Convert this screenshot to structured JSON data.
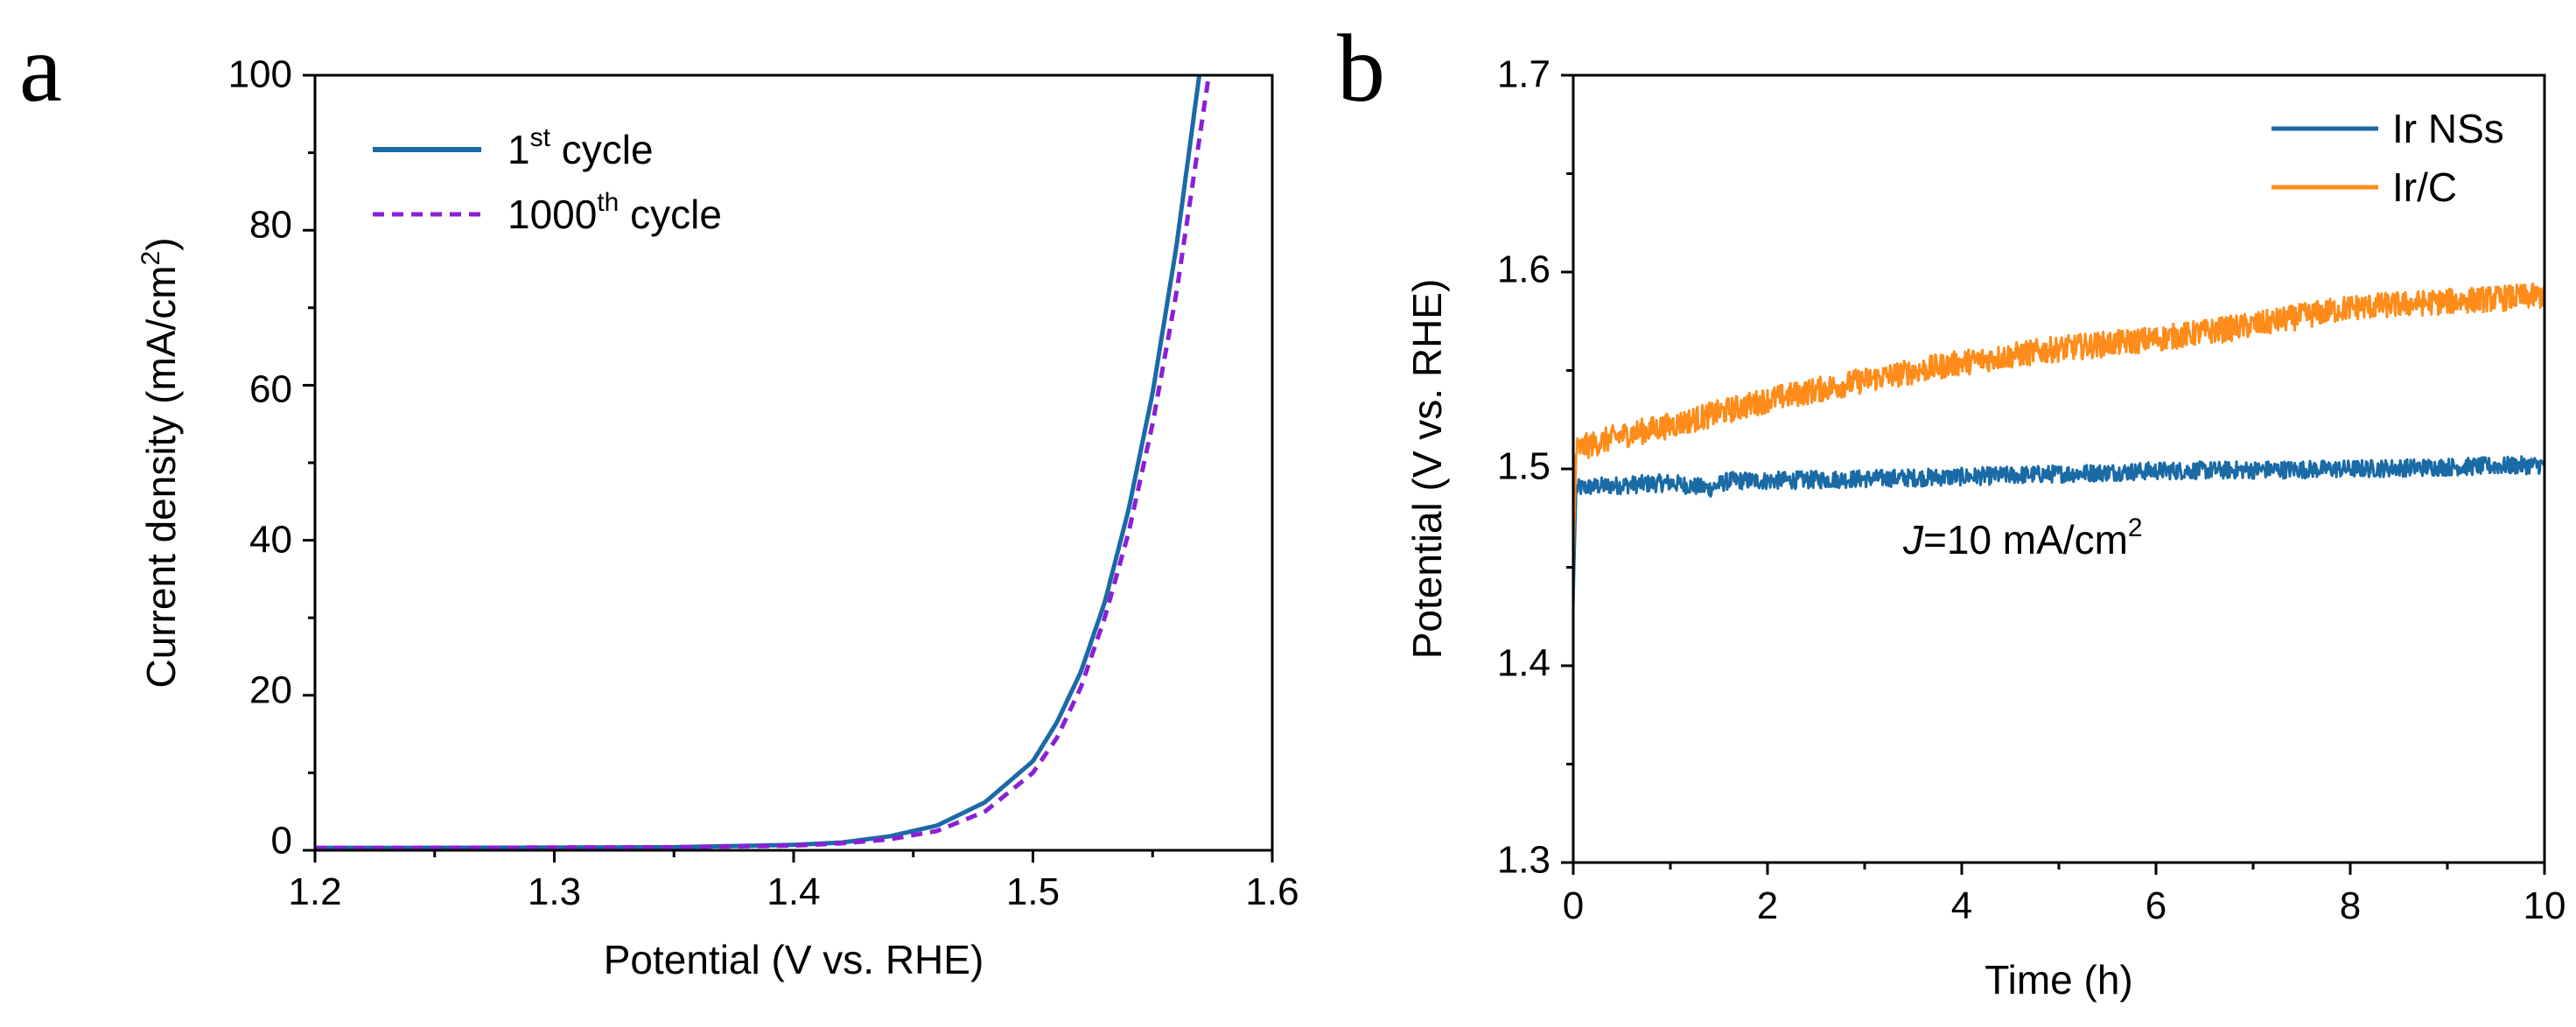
{
  "chart_data": [
    {
      "panel_label": "a",
      "type": "line",
      "xlabel": "Potential (V vs. RHE)",
      "ylabel_main": "Current density (mA/cm",
      "ylabel_sup": "2",
      "ylabel_end": ")",
      "xlim": [
        1.2,
        1.6
      ],
      "ylim": [
        0,
        100
      ],
      "xticks": [
        1.2,
        1.3,
        1.4,
        1.5,
        1.6
      ],
      "xtick_labels": [
        "1.2",
        "1.3",
        "1.4",
        "1.5",
        "1.6"
      ],
      "yticks": [
        0,
        20,
        40,
        60,
        80,
        100
      ],
      "ytick_labels": [
        "0",
        "20",
        "40",
        "60",
        "80",
        "100"
      ],
      "legend_position": "top-left",
      "grid": false,
      "series": [
        {
          "name_main": "1",
          "name_sup": "st",
          "name_end": " cycle",
          "color": "#1a6aa6",
          "dash": "solid",
          "points": [
            [
              1.2,
              0.3
            ],
            [
              1.3,
              0.35
            ],
            [
              1.35,
              0.4
            ],
            [
              1.4,
              0.7
            ],
            [
              1.42,
              1.0
            ],
            [
              1.44,
              1.8
            ],
            [
              1.46,
              3.2
            ],
            [
              1.48,
              6.2
            ],
            [
              1.5,
              11.5
            ],
            [
              1.51,
              16.5
            ],
            [
              1.52,
              23.0
            ],
            [
              1.53,
              32.0
            ],
            [
              1.54,
              44.0
            ],
            [
              1.55,
              59.0
            ],
            [
              1.56,
              78.0
            ],
            [
              1.5695,
              100.0
            ]
          ]
        },
        {
          "name_main": "1000",
          "name_sup": "th",
          "name_end": " cycle",
          "color": "#8b1fd6",
          "dash": "dashed",
          "points": [
            [
              1.2,
              0.3
            ],
            [
              1.3,
              0.35
            ],
            [
              1.35,
              0.4
            ],
            [
              1.4,
              0.6
            ],
            [
              1.42,
              0.9
            ],
            [
              1.44,
              1.4
            ],
            [
              1.46,
              2.5
            ],
            [
              1.48,
              5.0
            ],
            [
              1.5,
              10.0
            ],
            [
              1.51,
              14.5
            ],
            [
              1.52,
              21.0
            ],
            [
              1.53,
              30.0
            ],
            [
              1.54,
              41.0
            ],
            [
              1.55,
              55.0
            ],
            [
              1.56,
              72.0
            ],
            [
              1.5735,
              100.0
            ]
          ]
        }
      ]
    },
    {
      "panel_label": "b",
      "type": "line",
      "xlabel": "Time (h)",
      "ylabel": "Potential (V vs. RHE)",
      "xlim": [
        0,
        10
      ],
      "ylim": [
        1.3,
        1.7
      ],
      "xticks": [
        0,
        2,
        4,
        6,
        8,
        10
      ],
      "xtick_labels": [
        "0",
        "2",
        "4",
        "6",
        "8",
        "10"
      ],
      "yticks": [
        1.3,
        1.4,
        1.5,
        1.6,
        1.7
      ],
      "ytick_labels": [
        "1.3",
        "1.4",
        "1.5",
        "1.6",
        "1.7"
      ],
      "legend_position": "top-right",
      "grid": false,
      "annotation_italic": "J",
      "annotation_main": "=10 mA/cm",
      "annotation_sup": "2",
      "series": [
        {
          "name": "Ir NSs",
          "color": "#1a6aa6",
          "noise": 0.0045,
          "points": [
            [
              0,
              1.43
            ],
            [
              0.03,
              1.49
            ],
            [
              0.2,
              1.491
            ],
            [
              1.0,
              1.493
            ],
            [
              1.4,
              1.49
            ],
            [
              1.6,
              1.494
            ],
            [
              2.0,
              1.494
            ],
            [
              4.0,
              1.496
            ],
            [
              6.0,
              1.499
            ],
            [
              8.0,
              1.5
            ],
            [
              10.0,
              1.502
            ]
          ]
        },
        {
          "name": "Ir/C",
          "color": "#ff8c1a",
          "noise": 0.0065,
          "points": [
            [
              0,
              1.455
            ],
            [
              0.03,
              1.51
            ],
            [
              0.5,
              1.517
            ],
            [
              1.0,
              1.522
            ],
            [
              2.0,
              1.535
            ],
            [
              3.0,
              1.545
            ],
            [
              4.0,
              1.554
            ],
            [
              5.0,
              1.561
            ],
            [
              6.0,
              1.566
            ],
            [
              7.0,
              1.573
            ],
            [
              8.0,
              1.582
            ],
            [
              9.0,
              1.585
            ],
            [
              10.0,
              1.588
            ]
          ]
        }
      ]
    }
  ]
}
